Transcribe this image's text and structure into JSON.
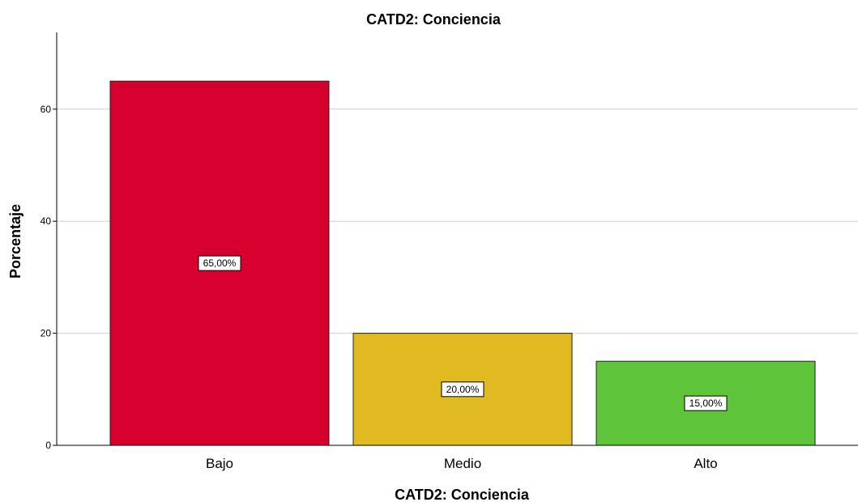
{
  "chart_data": {
    "type": "bar",
    "title": "CATD2: Conciencia",
    "xlabel": "CATD2: Conciencia",
    "ylabel": "Porcentaje",
    "categories": [
      "Bajo",
      "Medio",
      "Alto"
    ],
    "values": [
      65,
      20,
      15
    ],
    "data_labels": [
      "65,00%",
      "20,00%",
      "15,00%"
    ],
    "colors": [
      "#d6002f",
      "#e1b920",
      "#5ec53a"
    ],
    "yticks": [
      0,
      20,
      40,
      60
    ],
    "ylim": [
      0,
      75
    ],
    "grid": true,
    "legend": "none"
  }
}
